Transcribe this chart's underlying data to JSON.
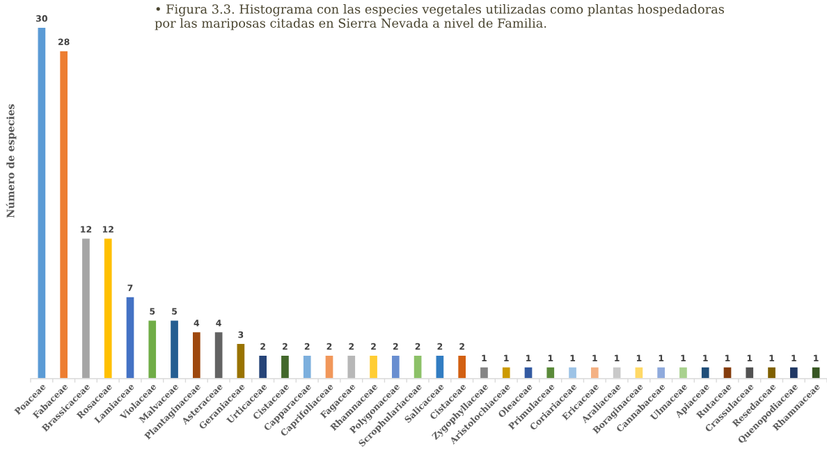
{
  "chart_data": {
    "type": "bar",
    "title": "• Figura 3.3. Histograma con las especies vegetales utilizadas como plantas hospedadoras por las mariposas citadas en Sierra Nevada a nivel de Familia.",
    "ylabel": "Número de especies",
    "categories": [
      "Poaceae",
      "Fabaceae",
      "Brassicaceae",
      "Rosaceae",
      "Lamiaceae",
      "Violaceae",
      "Malvaceae",
      "Plantaginaceae",
      "Asteraceae",
      "Geraniaceae",
      "Urticaceae",
      "Cistaceae",
      "Capparaceae",
      "Caprifoliaceae",
      "Fagaceae",
      "Rhamnaceae",
      "Polygonaceae",
      "Scrophulariaceae",
      "Salicaceae",
      "Cistaceae",
      "Zygophyllaceae",
      "Aristolochiaceae",
      "Oleaceae",
      "Primulaceae",
      "Coriariaceae",
      "Ericaceae",
      "Araliaceae",
      "Boraginaceae",
      "Cannabaceae",
      "Ulmaceae",
      "Apiaceae",
      "Rutaceae",
      "Crassulaceae",
      "Resedaceae",
      "Quenopodiaceae",
      "Rhamnaceae"
    ],
    "values": [
      30,
      28,
      12,
      12,
      7,
      5,
      5,
      4,
      4,
      3,
      2,
      2,
      2,
      2,
      2,
      2,
      2,
      2,
      2,
      2,
      1,
      1,
      1,
      1,
      1,
      1,
      1,
      1,
      1,
      1,
      1,
      1,
      1,
      1,
      1,
      1
    ],
    "colors": [
      "#5b9bd5",
      "#ed7d31",
      "#a5a5a5",
      "#ffc000",
      "#4472c4",
      "#70ad47",
      "#255e91",
      "#9e480e",
      "#636363",
      "#997300",
      "#264478",
      "#43682b",
      "#7cafdd",
      "#f1975a",
      "#b7b7b7",
      "#ffcd33",
      "#698ed0",
      "#8cc168",
      "#327dc2",
      "#d26012",
      "#848484",
      "#cc9a00",
      "#335aa1",
      "#5a8a39",
      "#9dc3e6",
      "#f4b183",
      "#c9c9c9",
      "#ffd966",
      "#8faadc",
      "#a9d18e",
      "#1f4e79",
      "#843c0c",
      "#525252",
      "#7f6000",
      "#203864",
      "#385723"
    ],
    "data_labels": true,
    "tick_labels": "x"
  }
}
